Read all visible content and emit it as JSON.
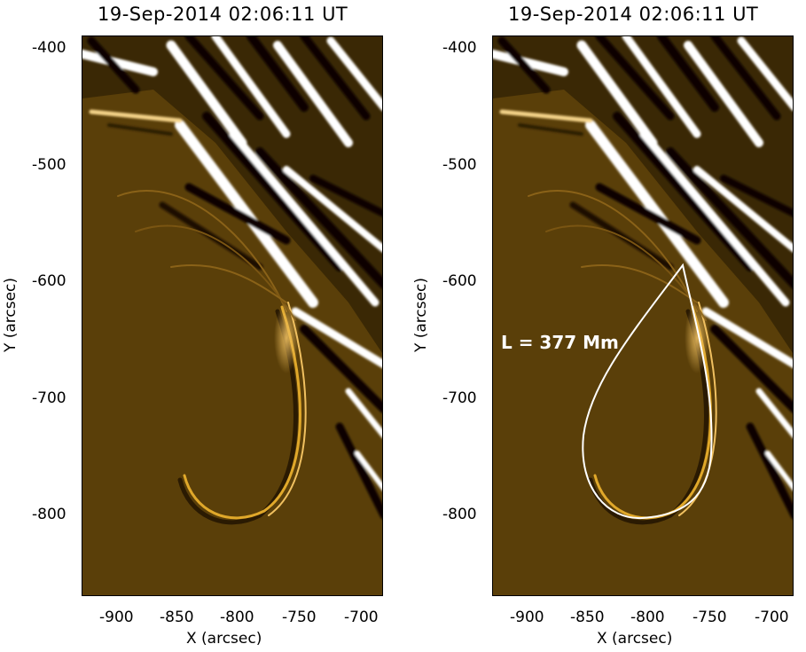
{
  "panels": [
    {
      "title": "19-Sep-2014 02:06:11 UT",
      "xlabel": "X (arcsec)",
      "ylabel": "Y (arcsec)",
      "xticks": [
        "-900",
        "-850",
        "-800",
        "-750",
        "-700"
      ],
      "yticks": [
        "-400",
        "-500",
        "-600",
        "-700",
        "-800"
      ],
      "annotation": ""
    },
    {
      "title": "19-Sep-2014 02:06:11 UT",
      "xlabel": "X (arcsec)",
      "ylabel": "Y (arcsec)",
      "xticks": [
        "-900",
        "-850",
        "-800",
        "-750",
        "-700"
      ],
      "yticks": [
        "-400",
        "-500",
        "-600",
        "-700",
        "-800"
      ],
      "annotation": "L = 377 Mm"
    }
  ],
  "colors": {
    "background": "#5a3f09",
    "bright": "#ffffff",
    "dark": "#0a0600",
    "loop": "#e0a82a",
    "outline": "#ffffff"
  }
}
